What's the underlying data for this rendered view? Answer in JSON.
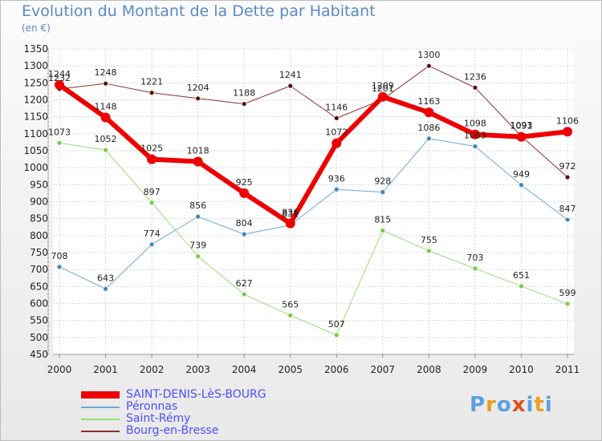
{
  "title": "Evolution du Montant de la Dette par Habitant",
  "unit": "(en €)",
  "logo": "Proxiti",
  "colors": {
    "title": "#5a8ac6",
    "legend_text": "#4d4dff",
    "logo": [
      "#5aa0e0",
      "#e8a020",
      "#5aa0e0",
      "#e05020",
      "#5aa0e0",
      "#e8a020",
      "#5aa0e0"
    ]
  },
  "chart_data": {
    "type": "line",
    "x": [
      2000,
      2001,
      2002,
      2003,
      2004,
      2005,
      2006,
      2007,
      2008,
      2009,
      2010,
      2011
    ],
    "ylim": [
      450,
      1350
    ],
    "yticks": [
      450,
      500,
      550,
      600,
      650,
      700,
      750,
      800,
      850,
      900,
      950,
      1000,
      1050,
      1100,
      1150,
      1200,
      1250,
      1300,
      1350
    ],
    "grid": true,
    "legend_position": "bottom-left",
    "series": [
      {
        "name": "Bourg-en-Bresse",
        "color": "#8b2e2e",
        "marker": "#5a0f0f",
        "width": 1,
        "values": [
          1232,
          1248,
          1221,
          1204,
          1188,
          1241,
          1146,
          1201,
          1300,
          1236,
          1093,
          972
        ]
      },
      {
        "name": "Saint-Rémy",
        "color": "#99dd77",
        "marker": "#77cc44",
        "width": 1,
        "values": [
          1073,
          1052,
          897,
          739,
          627,
          565,
          507,
          815,
          755,
          703,
          651,
          599
        ]
      },
      {
        "name": "Péronnas",
        "color": "#6aa8d8",
        "marker": "#3e86c4",
        "width": 1,
        "values": [
          708,
          643,
          774,
          856,
          804,
          831,
          936,
          928,
          1086,
          1063,
          949,
          847
        ]
      },
      {
        "name": "SAINT-DENIS-LèS-BOURG",
        "color": "#ee0000",
        "marker": "#ee0000",
        "width": 6,
        "values": [
          1244,
          1148,
          1025,
          1018,
          925,
          836,
          1072,
          1209,
          1163,
          1098,
          1091,
          1106
        ]
      }
    ]
  }
}
